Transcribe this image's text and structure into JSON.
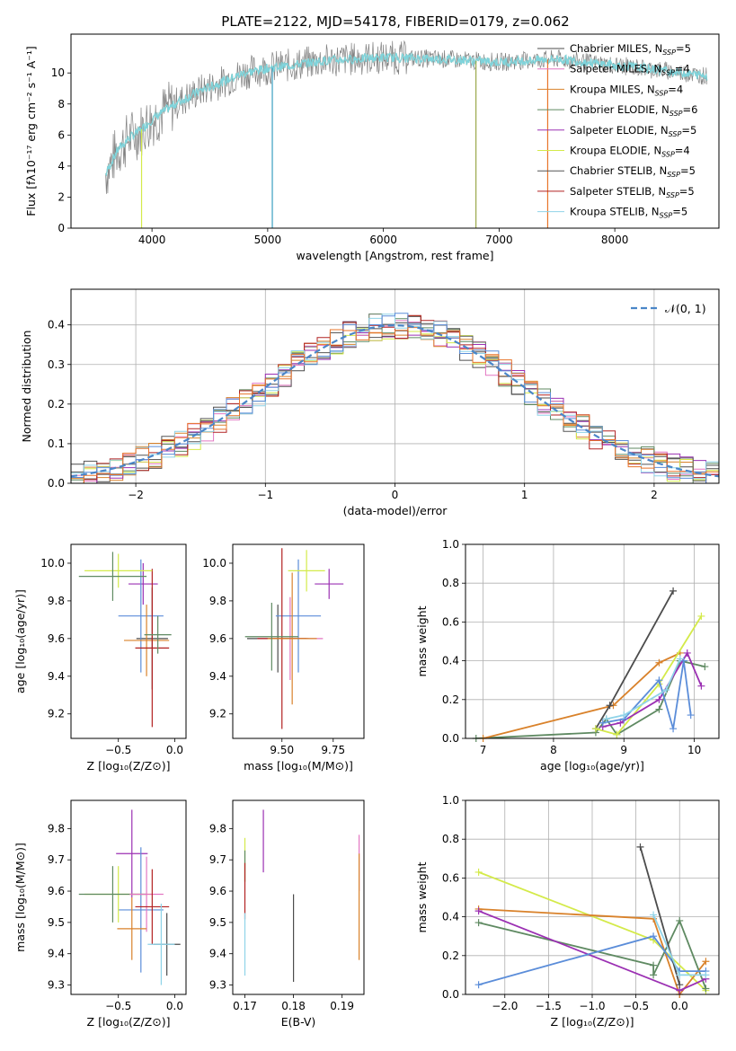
{
  "figure": {
    "title": "PLATE=2122, MJD=54178, FIBERID=0179, z=0.062"
  },
  "legend_entries": [
    {
      "base": "Chabrier MILES, N",
      "sub": "SSP",
      "tail": "=5",
      "color": "#4c4c4c"
    },
    {
      "base": "Salpeter MILES, N",
      "sub": "SSP",
      "tail": "=4",
      "color": "#e377c2"
    },
    {
      "base": "Kroupa MILES, N",
      "sub": "SSP",
      "tail": "=4",
      "color": "#d9822b"
    },
    {
      "base": "Chabrier ELODIE, N",
      "sub": "SSP",
      "tail": "=6",
      "color": "#5f8a62"
    },
    {
      "base": "Salpeter ELODIE, N",
      "sub": "SSP",
      "tail": "=5",
      "color": "#9b30b3"
    },
    {
      "base": "Kroupa ELODIE, N",
      "sub": "SSP",
      "tail": "=4",
      "color": "#d4ea4a"
    },
    {
      "base": "Chabrier STELIB, N",
      "sub": "SSP",
      "tail": "=5",
      "color": "#555555"
    },
    {
      "base": "Salpeter STELIB, N",
      "sub": "SSP",
      "tail": "=5",
      "color": "#b22222"
    },
    {
      "base": "Kroupa STELIB, N",
      "sub": "SSP",
      "tail": "=5",
      "color": "#8fd3e8"
    }
  ],
  "chart_data": [
    {
      "id": "spectrum",
      "type": "line",
      "xlabel": "wavelength [Angstrom, rest frame]",
      "ylabel": "Flux [fλ10⁻¹⁷ erg cm⁻² s⁻¹ A⁻¹]",
      "xlim": [
        3300,
        8900
      ],
      "ylim": [
        0,
        12.5
      ],
      "xticks": [
        4000,
        5000,
        6000,
        7000,
        8000
      ],
      "yticks": [
        0,
        2,
        4,
        6,
        8,
        10
      ],
      "data_envelope": {
        "x": [
          3600,
          3700,
          3800,
          3900,
          4000,
          4200,
          4400,
          4600,
          4800,
          5000,
          5500,
          6000,
          6500,
          7000,
          7500,
          8000,
          8500,
          8800
        ],
        "y": [
          3.5,
          5.0,
          5.8,
          6.3,
          7.0,
          8.0,
          8.8,
          9.4,
          10.0,
          10.3,
          10.8,
          11.0,
          10.9,
          10.7,
          10.9,
          10.5,
          10.1,
          9.8
        ]
      },
      "grid": false,
      "legend_position": "right"
    },
    {
      "id": "residuals",
      "type": "histogram",
      "xlabel": "(data-model)/error",
      "ylabel": "Normed distribution",
      "xlim": [
        -2.5,
        2.5
      ],
      "ylim": [
        0,
        0.49
      ],
      "xticks": [
        -2,
        -1,
        0,
        1,
        2
      ],
      "yticks": [
        0.0,
        0.1,
        0.2,
        0.3,
        0.4
      ],
      "series_name": "𝒩(0, 1)",
      "gaussian": {
        "mean": 0,
        "sigma": 1
      },
      "grid": true,
      "legend_position": "top-right"
    },
    {
      "id": "z-age",
      "type": "errorbar",
      "xlabel": "Z [log₁₀(Z/Z⊙)]",
      "ylabel": "age  [log₁₀(age/yr)]",
      "xlim": [
        -0.92,
        0.1
      ],
      "ylim": [
        9.07,
        10.1
      ],
      "xticks": [
        -0.5,
        0.0
      ],
      "yticks": [
        9.2,
        9.4,
        9.6,
        9.8,
        10.0
      ],
      "points": [
        {
          "x": -0.2,
          "y": 9.6,
          "xe": 0.14,
          "ye": 0.27,
          "color": "#4c4c4c"
        },
        {
          "x": -0.28,
          "y": 9.89,
          "xe": 0.13,
          "ye": 0.11,
          "color": "#9b30b3"
        },
        {
          "x": -0.3,
          "y": 9.72,
          "xe": 0.2,
          "ye": 0.3,
          "color": "#5b8dd9"
        },
        {
          "x": -0.25,
          "y": 9.59,
          "xe": 0.2,
          "ye": 0.19,
          "color": "#d9822b"
        },
        {
          "x": -0.2,
          "y": 9.55,
          "xe": 0.15,
          "ye": 0.42,
          "color": "#b22222"
        },
        {
          "x": -0.5,
          "y": 9.96,
          "xe": 0.3,
          "ye": 0.09,
          "color": "#d4ea4a"
        },
        {
          "x": -0.55,
          "y": 9.93,
          "xe": 0.3,
          "ye": 0.13,
          "color": "#5f8a62"
        },
        {
          "x": -0.15,
          "y": 9.62,
          "xe": 0.12,
          "ye": 0.1,
          "color": "#5f8a62"
        }
      ]
    },
    {
      "id": "mass-age",
      "type": "errorbar",
      "xlabel": "mass [log₁₀(M/M⊙)]",
      "xlim": [
        9.26,
        9.9
      ],
      "ylim": [
        9.07,
        10.1
      ],
      "xticks": [
        9.5,
        9.75
      ],
      "yticks": [
        9.2,
        9.4,
        9.6,
        9.8,
        10.0
      ],
      "points": [
        {
          "x": 9.48,
          "y": 9.6,
          "xe": 0.15,
          "ye": 0.18,
          "color": "#4c4c4c"
        },
        {
          "x": 9.73,
          "y": 9.89,
          "xe": 0.07,
          "ye": 0.08,
          "color": "#9b30b3"
        },
        {
          "x": 9.54,
          "y": 9.6,
          "xe": 0.16,
          "ye": 0.22,
          "color": "#e377c2"
        },
        {
          "x": 9.58,
          "y": 9.72,
          "xe": 0.11,
          "ye": 0.3,
          "color": "#5b8dd9"
        },
        {
          "x": 9.5,
          "y": 9.6,
          "xe": 0.12,
          "ye": 0.48,
          "color": "#b22222"
        },
        {
          "x": 9.62,
          "y": 9.96,
          "xe": 0.09,
          "ye": 0.11,
          "color": "#d4ea4a"
        },
        {
          "x": 9.55,
          "y": 9.6,
          "xe": 0.12,
          "ye": 0.35,
          "color": "#d9822b"
        },
        {
          "x": 9.45,
          "y": 9.61,
          "xe": 0.13,
          "ye": 0.18,
          "color": "#5f8a62"
        }
      ]
    },
    {
      "id": "age-weight",
      "type": "line",
      "xlabel": "age  [log₁₀(age/yr)]",
      "ylabel": "mass weight",
      "xlim": [
        6.75,
        10.35
      ],
      "ylim": [
        0,
        1.0
      ],
      "xticks": [
        7,
        8,
        9,
        10
      ],
      "yticks": [
        0.0,
        0.2,
        0.4,
        0.6,
        0.8,
        1.0
      ],
      "grid": true,
      "series": [
        {
          "color": "#5f8a62",
          "x": [
            6.9,
            8.6,
            8.75,
            8.9,
            9.5,
            9.8,
            10.15
          ],
          "y": [
            0.0,
            0.03,
            0.1,
            0.02,
            0.15,
            0.4,
            0.37
          ]
        },
        {
          "color": "#d9822b",
          "x": [
            7.0,
            8.85,
            9.5,
            9.8
          ],
          "y": [
            0.0,
            0.17,
            0.39,
            0.44
          ]
        },
        {
          "color": "#4c4c4c",
          "x": [
            8.6,
            8.8,
            9.7
          ],
          "y": [
            0.05,
            0.17,
            0.76
          ]
        },
        {
          "color": "#d4ea4a",
          "x": [
            8.6,
            8.9,
            9.5,
            10.1
          ],
          "y": [
            0.05,
            0.02,
            0.28,
            0.63
          ]
        },
        {
          "color": "#9b30b3",
          "x": [
            8.7,
            8.95,
            9.5,
            9.9,
            10.1
          ],
          "y": [
            0.06,
            0.08,
            0.2,
            0.44,
            0.27
          ]
        },
        {
          "color": "#5b8dd9",
          "x": [
            8.7,
            9.0,
            9.5,
            9.7,
            9.85,
            9.95
          ],
          "y": [
            0.08,
            0.1,
            0.3,
            0.05,
            0.4,
            0.12
          ]
        },
        {
          "color": "#8fd3e8",
          "x": [
            8.75,
            9.0,
            9.6,
            9.8
          ],
          "y": [
            0.1,
            0.12,
            0.25,
            0.41
          ]
        }
      ]
    },
    {
      "id": "z-mass",
      "type": "errorbar",
      "xlabel": "Z [log₁₀(Z/Z⊙)]",
      "ylabel": "mass [log₁₀(M/M⊙)]",
      "xlim": [
        -0.92,
        0.1
      ],
      "ylim": [
        9.27,
        9.89
      ],
      "xticks": [
        -0.5,
        0.0
      ],
      "yticks": [
        9.3,
        9.4,
        9.5,
        9.6,
        9.7,
        9.8
      ],
      "points": [
        {
          "x": -0.38,
          "y": 9.72,
          "xe": 0.14,
          "ye": 0.14,
          "color": "#9b30b3"
        },
        {
          "x": -0.3,
          "y": 9.54,
          "xe": 0.2,
          "ye": 0.2,
          "color": "#5b8dd9"
        },
        {
          "x": -0.5,
          "y": 9.59,
          "xe": 0.3,
          "ye": 0.09,
          "color": "#d4ea4a"
        },
        {
          "x": -0.55,
          "y": 9.59,
          "xe": 0.3,
          "ye": 0.09,
          "color": "#5f8a62"
        },
        {
          "x": -0.25,
          "y": 9.59,
          "xe": 0.15,
          "ye": 0.12,
          "color": "#e377c2"
        },
        {
          "x": -0.38,
          "y": 9.48,
          "xe": 0.13,
          "ye": 0.1,
          "color": "#d9822b"
        },
        {
          "x": -0.2,
          "y": 9.55,
          "xe": 0.15,
          "ye": 0.12,
          "color": "#b22222"
        },
        {
          "x": -0.07,
          "y": 9.43,
          "xe": 0.12,
          "ye": 0.1,
          "color": "#4c4c4c"
        },
        {
          "x": -0.12,
          "y": 9.43,
          "xe": 0.12,
          "ye": 0.13,
          "color": "#8fd3e8"
        }
      ]
    },
    {
      "id": "ebv-mass",
      "type": "errorbar",
      "xlabel": "E(B-V)",
      "xlim": [
        0.1675,
        0.1945
      ],
      "ylim": [
        9.27,
        9.89
      ],
      "xticks": [
        0.17,
        0.18,
        0.19
      ],
      "yticks": [
        9.3,
        9.4,
        9.5,
        9.6,
        9.7,
        9.8
      ],
      "points": [
        {
          "x": 0.1738,
          "y": 9.76,
          "xe": 0,
          "ye": 0.1,
          "color": "#9b30b3"
        },
        {
          "x": 0.17,
          "y": 9.7,
          "xe": 0,
          "ye": 0.07,
          "color": "#d4ea4a"
        },
        {
          "x": 0.17,
          "y": 9.68,
          "xe": 0,
          "ye": 0.05,
          "color": "#5f8a62"
        },
        {
          "x": 0.17,
          "y": 9.6,
          "xe": 0,
          "ye": 0.09,
          "color": "#b22222"
        },
        {
          "x": 0.17,
          "y": 9.43,
          "xe": 0,
          "ye": 0.1,
          "color": "#8fd3e8"
        },
        {
          "x": 0.18,
          "y": 9.45,
          "xe": 0,
          "ye": 0.14,
          "color": "#4c4c4c"
        },
        {
          "x": 0.1935,
          "y": 9.69,
          "xe": 0,
          "ye": 0.09,
          "color": "#e377c2"
        },
        {
          "x": 0.1935,
          "y": 9.55,
          "xe": 0,
          "ye": 0.17,
          "color": "#d9822b"
        }
      ]
    },
    {
      "id": "z-weight",
      "type": "line",
      "xlabel": "Z [log₁₀(Z/Z⊙)]",
      "ylabel": "mass weight",
      "xlim": [
        -2.45,
        0.45
      ],
      "ylim": [
        0,
        1.0
      ],
      "xticks": [
        -2.0,
        -1.5,
        -1.0,
        -0.5,
        0.0
      ],
      "yticks": [
        0.0,
        0.2,
        0.4,
        0.6,
        0.8,
        1.0
      ],
      "grid": true,
      "series": [
        {
          "color": "#d4ea4a",
          "x": [
            -2.3,
            -0.3,
            0.3
          ],
          "y": [
            0.63,
            0.28,
            0.02
          ]
        },
        {
          "color": "#d9822b",
          "x": [
            -2.3,
            -0.3,
            0.0,
            0.3
          ],
          "y": [
            0.44,
            0.39,
            0.0,
            0.17
          ]
        },
        {
          "color": "#5f8a62",
          "x": [
            -2.3,
            -0.3,
            -0.3,
            0.0,
            0.3
          ],
          "y": [
            0.37,
            0.15,
            0.1,
            0.38,
            0.03
          ]
        },
        {
          "color": "#9b30b3",
          "x": [
            -2.3,
            0.0,
            0.3
          ],
          "y": [
            0.43,
            0.02,
            0.08
          ]
        },
        {
          "color": "#5b8dd9",
          "x": [
            -2.3,
            -0.3,
            0.0,
            0.3
          ],
          "y": [
            0.05,
            0.3,
            0.12,
            0.12
          ]
        },
        {
          "color": "#4c4c4c",
          "x": [
            -0.45,
            0.0
          ],
          "y": [
            0.76,
            0.05
          ]
        },
        {
          "color": "#8fd3e8",
          "x": [
            -0.3,
            0.0,
            0.3
          ],
          "y": [
            0.41,
            0.1,
            0.1
          ]
        }
      ]
    }
  ]
}
